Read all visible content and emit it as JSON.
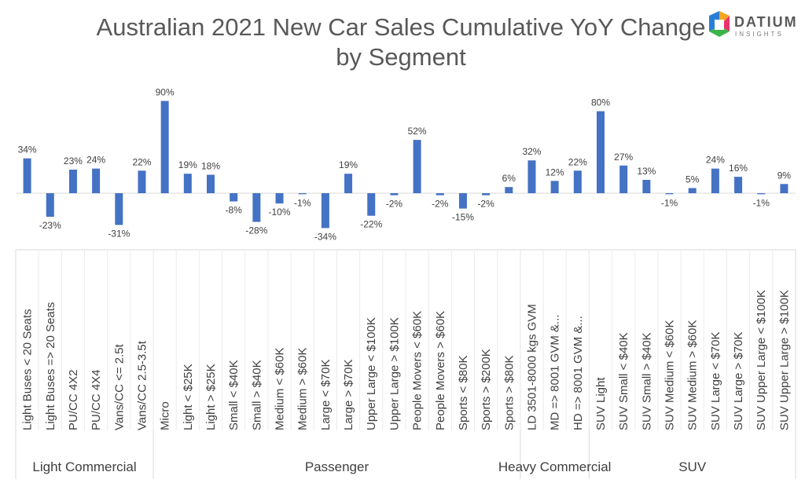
{
  "chart_data": {
    "type": "bar",
    "title": "Australian 2021 New Car Sales Cumulative YoY Change by Segment",
    "categories": [
      "Light Buses < 20 Seats",
      "Light Buses => 20 Seats",
      "PU/CC 4X2",
      "PU/CC 4X4",
      "Vans/CC <= 2.5t",
      "Vans/CC 2.5-3.5t",
      "Micro",
      "Light < $25K",
      "Light > $25K",
      "Small < $40K",
      "Small > $40K",
      "Medium < $60K",
      "Medium > $60K",
      "Large < $70K",
      "Large > $70K",
      "Upper Large < $100K",
      "Upper Large > $100K",
      "People Movers < $60K",
      "People Movers > $60K",
      "Sports < $80K",
      "Sports > $200K",
      "Sports > $80K",
      "LD 3501-8000 kgs GVM",
      "MD => 8001 GVM &...",
      "HD => 8001 GVM &...",
      "SUV Light",
      "SUV Small < $40K",
      "SUV Small > $40K",
      "SUV Medium < $60K",
      "SUV Medium > $60K",
      "SUV Large < $70K",
      "SUV Large > $70K",
      "SUV Upper Large < $100K",
      "SUV Upper Large > $100K"
    ],
    "values": [
      34,
      -23,
      23,
      24,
      -31,
      22,
      90,
      19,
      18,
      -8,
      -28,
      -10,
      -1,
      -34,
      19,
      -22,
      -2,
      52,
      -2,
      -15,
      -2,
      6,
      32,
      12,
      22,
      80,
      27,
      13,
      -1,
      5,
      24,
      16,
      -1,
      9
    ],
    "data_labels": [
      "34%",
      "-23%",
      "23%",
      "24%",
      "-31%",
      "22%",
      "90%",
      "19%",
      "18%",
      "-8%",
      "-28%",
      "-10%",
      "-1%",
      "-34%",
      "19%",
      "-22%",
      "-2%",
      "52%",
      "-2%",
      "-15%",
      "-2%",
      "6%",
      "32%",
      "12%",
      "22%",
      "80%",
      "27%",
      "13%",
      "-1%",
      "5%",
      "24%",
      "16%",
      "-1%",
      "9%"
    ],
    "groups": [
      {
        "name": "Light Commercial",
        "count": 6
      },
      {
        "name": "Passenger",
        "count": 16
      },
      {
        "name": "Heavy Commercial",
        "count": 3
      },
      {
        "name": "SUV",
        "count": 9
      }
    ],
    "bar_color": "#4472C4",
    "grid": false,
    "legend": "none"
  },
  "logo": {
    "brand": "DATIUM",
    "sub": "INSIGHTS"
  }
}
